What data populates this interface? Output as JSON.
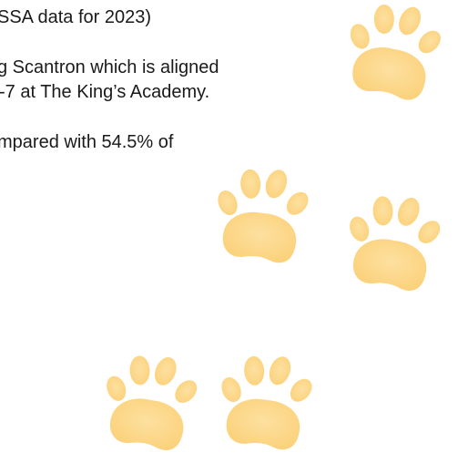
{
  "lines": [
    "SSA data for 2023)",
    "g Scantron which is aligned",
    "-7 at The King’s Academy.",
    "mpared with 54.5% of"
  ]
}
